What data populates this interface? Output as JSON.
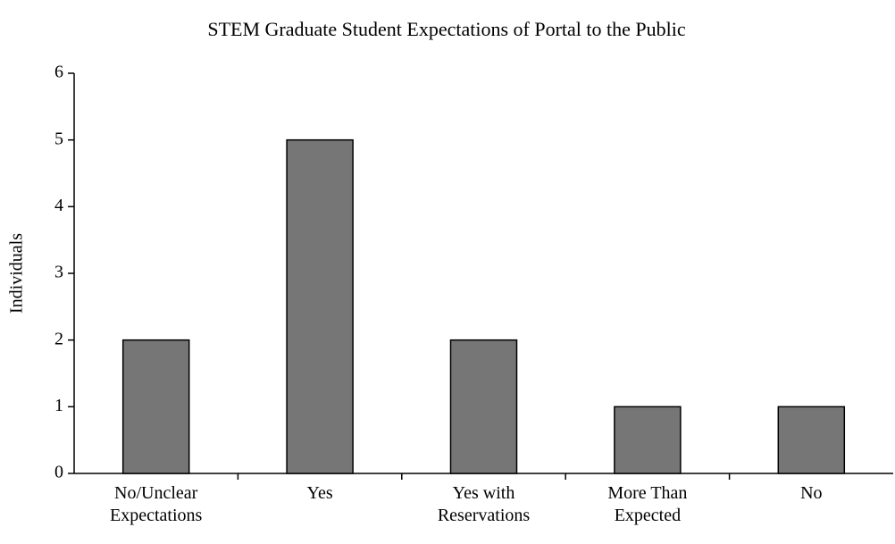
{
  "chart_data": {
    "type": "bar",
    "title": "STEM Graduate Student Expectations of Portal to the Public",
    "y_label": "Individuals",
    "categories": [
      "No/Unclear Expectations",
      "Yes",
      "Yes with Reservations",
      "More Than Expected",
      "No"
    ],
    "values": [
      2,
      5,
      2,
      1,
      1
    ],
    "color": "#767676",
    "ylim": [
      0,
      6
    ],
    "yticks": [
      0,
      1,
      2,
      3,
      4,
      5,
      6
    ],
    "grid": false
  }
}
